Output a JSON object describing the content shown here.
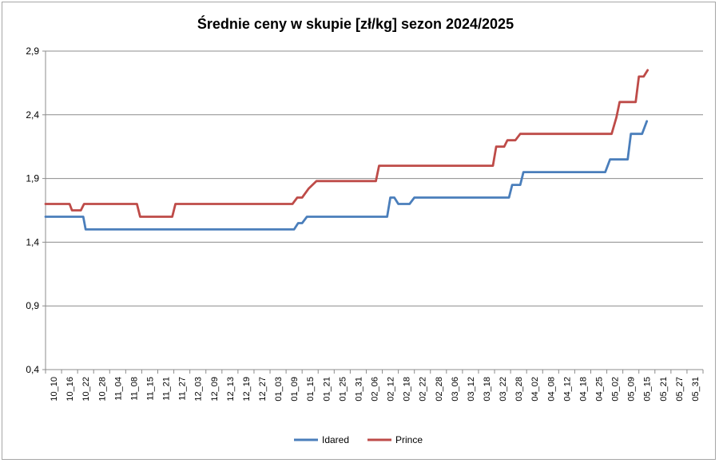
{
  "chart_data": {
    "type": "line",
    "title": "Średnie ceny w skupie [zł/kg] sezon 2024/2025",
    "ylim": [
      0.4,
      2.9
    ],
    "yticks": [
      "0,4",
      "0,9",
      "1,4",
      "1,9",
      "2,4",
      "2,9"
    ],
    "ytick_values": [
      0.4,
      0.9,
      1.4,
      1.9,
      2.4,
      2.9
    ],
    "grid": true,
    "legend_position": "bottom",
    "x_labels": [
      "10_10",
      "10_16",
      "10_22",
      "10_28",
      "11_04",
      "11_08",
      "11_15",
      "11_21",
      "11_27",
      "12_03",
      "12_09",
      "12_13",
      "12_19",
      "12_27",
      "01_03",
      "01_09",
      "01_15",
      "01_21",
      "01_25",
      "01_31",
      "02_06",
      "02_12",
      "02_18",
      "02_22",
      "02_28",
      "03_06",
      "03_12",
      "03_18",
      "03_22",
      "03_28",
      "04_02",
      "04_08",
      "04_12",
      "04_18",
      "04_25",
      "05_02",
      "05_09",
      "05_15",
      "05_21",
      "05_27",
      "05_31"
    ],
    "series": [
      {
        "name": "Idared",
        "color": "#4a7ebb",
        "points": [
          [
            0,
            1.6
          ],
          [
            2.35,
            1.6
          ],
          [
            2.5,
            1.5
          ],
          [
            15.5,
            1.5
          ],
          [
            15.75,
            1.55
          ],
          [
            16,
            1.55
          ],
          [
            16.3,
            1.6
          ],
          [
            21.3,
            1.6
          ],
          [
            21.5,
            1.75
          ],
          [
            21.75,
            1.75
          ],
          [
            22,
            1.7
          ],
          [
            22.7,
            1.7
          ],
          [
            23,
            1.75
          ],
          [
            28.9,
            1.75
          ],
          [
            29.1,
            1.85
          ],
          [
            29.6,
            1.85
          ],
          [
            29.8,
            1.95
          ],
          [
            34.9,
            1.95
          ],
          [
            35.2,
            2.05
          ],
          [
            36.3,
            2.05
          ],
          [
            36.5,
            2.25
          ],
          [
            37.2,
            2.25
          ],
          [
            37.5,
            2.35
          ]
        ]
      },
      {
        "name": "Prince",
        "color": "#be4b48",
        "points": [
          [
            0,
            1.7
          ],
          [
            1.5,
            1.7
          ],
          [
            1.65,
            1.65
          ],
          [
            2.2,
            1.65
          ],
          [
            2.4,
            1.7
          ],
          [
            5.7,
            1.7
          ],
          [
            5.9,
            1.6
          ],
          [
            7.9,
            1.6
          ],
          [
            8.1,
            1.7
          ],
          [
            15.4,
            1.7
          ],
          [
            15.7,
            1.75
          ],
          [
            16,
            1.75
          ],
          [
            16.4,
            1.82
          ],
          [
            16.9,
            1.88
          ],
          [
            20.6,
            1.88
          ],
          [
            20.8,
            2.0
          ],
          [
            27.9,
            2.0
          ],
          [
            28.1,
            2.15
          ],
          [
            28.6,
            2.15
          ],
          [
            28.8,
            2.2
          ],
          [
            29.3,
            2.2
          ],
          [
            29.6,
            2.25
          ],
          [
            35.3,
            2.25
          ],
          [
            35.6,
            2.38
          ],
          [
            35.8,
            2.5
          ],
          [
            36.8,
            2.5
          ],
          [
            37,
            2.7
          ],
          [
            37.3,
            2.7
          ],
          [
            37.55,
            2.75
          ]
        ]
      }
    ]
  }
}
